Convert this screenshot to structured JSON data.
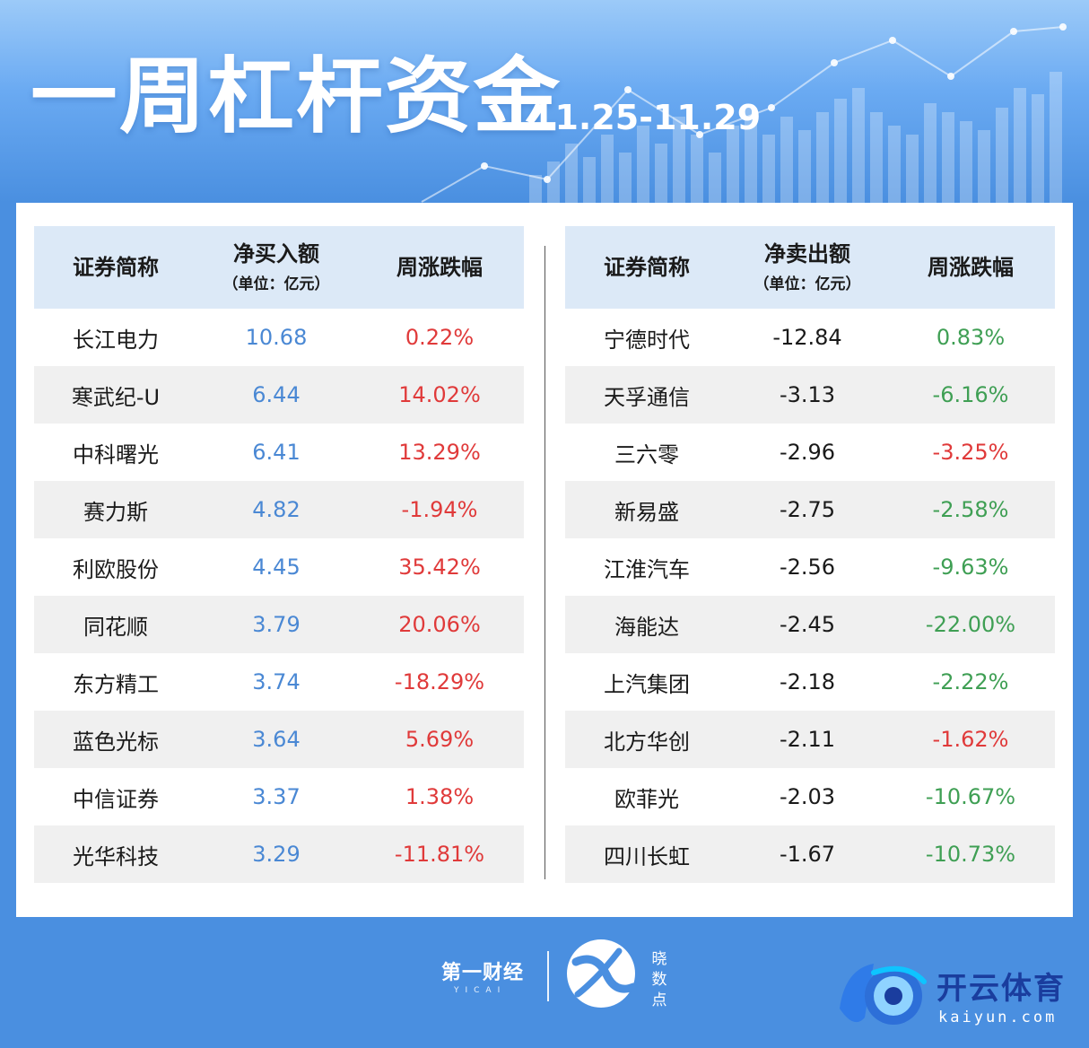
{
  "header": {
    "title": "一周杠杆资金",
    "date_range": "11.25-11.29"
  },
  "colors": {
    "positive_change": "#e03a3a",
    "negative_change": "#3f9f54",
    "buy_amount": "#4a88d4",
    "table_header_bg": "#dce9f7",
    "page_bg": "#4a8fe0"
  },
  "buy_table": {
    "col_name": "证券简称",
    "col_amount": "净买入额",
    "col_amount_unit": "（单位：亿元）",
    "col_change": "周涨跌幅",
    "rows": [
      {
        "name": "长江电力",
        "amount": "10.68",
        "change": "0.22%",
        "change_color": "red"
      },
      {
        "name": "寒武纪-U",
        "amount": "6.44",
        "change": "14.02%",
        "change_color": "red"
      },
      {
        "name": "中科曙光",
        "amount": "6.41",
        "change": "13.29%",
        "change_color": "red"
      },
      {
        "name": "赛力斯",
        "amount": "4.82",
        "change": "-1.94%",
        "change_color": "red"
      },
      {
        "name": "利欧股份",
        "amount": "4.45",
        "change": "35.42%",
        "change_color": "red"
      },
      {
        "name": "同花顺",
        "amount": "3.79",
        "change": "20.06%",
        "change_color": "red"
      },
      {
        "name": "东方精工",
        "amount": "3.74",
        "change": "-18.29%",
        "change_color": "red"
      },
      {
        "name": "蓝色光标",
        "amount": "3.64",
        "change": "5.69%",
        "change_color": "red"
      },
      {
        "name": "中信证券",
        "amount": "3.37",
        "change": "1.38%",
        "change_color": "red"
      },
      {
        "name": "光华科技",
        "amount": "3.29",
        "change": "-11.81%",
        "change_color": "red"
      }
    ]
  },
  "sell_table": {
    "col_name": "证券简称",
    "col_amount": "净卖出额",
    "col_amount_unit": "（单位：亿元）",
    "col_change": "周涨跌幅",
    "rows": [
      {
        "name": "宁德时代",
        "amount": "-12.84",
        "change": "0.83%",
        "change_color": "green"
      },
      {
        "name": "天孚通信",
        "amount": "-3.13",
        "change": "-6.16%",
        "change_color": "green"
      },
      {
        "name": "三六零",
        "amount": "-2.96",
        "change": "-3.25%",
        "change_color": "red"
      },
      {
        "name": "新易盛",
        "amount": "-2.75",
        "change": "-2.58%",
        "change_color": "green"
      },
      {
        "name": "江淮汽车",
        "amount": "-2.56",
        "change": "-9.63%",
        "change_color": "green"
      },
      {
        "name": "海能达",
        "amount": "-2.45",
        "change": "-22.00%",
        "change_color": "green"
      },
      {
        "name": "上汽集团",
        "amount": "-2.18",
        "change": "-2.22%",
        "change_color": "green"
      },
      {
        "name": "北方华创",
        "amount": "-2.11",
        "change": "-1.62%",
        "change_color": "red"
      },
      {
        "name": "欧菲光",
        "amount": "-2.03",
        "change": "-10.67%",
        "change_color": "green"
      },
      {
        "name": "四川长虹",
        "amount": "-1.67",
        "change": "-10.73%",
        "change_color": "green"
      }
    ]
  },
  "footer": {
    "yicai_logo_text": "第一财经",
    "yicai_sub_text": "YICAI",
    "xiao_logo_icon": "xs-swirl-icon",
    "xiao_text": [
      "晓",
      "数",
      "点"
    ],
    "watermark_icon": "kaiyun-ball-icon",
    "watermark_name": "开云体育",
    "watermark_url": "kaiyun.com"
  }
}
